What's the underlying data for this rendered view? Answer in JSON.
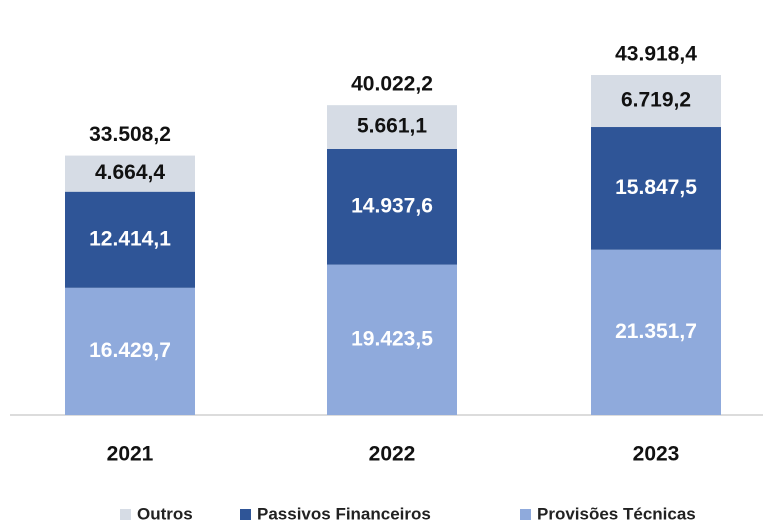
{
  "chart_data": {
    "type": "stacked_bar",
    "categories": [
      "2021",
      "2022",
      "2023"
    ],
    "series": [
      {
        "name": "Outros",
        "color": "#d6dce5",
        "label_color": "#111111",
        "values": [
          4664.4,
          5661.1,
          6719.2
        ],
        "value_labels": [
          "4.664,4",
          "5.661,1",
          "6.719,2"
        ]
      },
      {
        "name": "Passivos Financeiros",
        "color": "#2f5597",
        "label_color": "#ffffff",
        "values": [
          12414.1,
          14937.6,
          15847.5
        ],
        "value_labels": [
          "12.414,1",
          "14.937,6",
          "15.847,5"
        ]
      },
      {
        "name": "Provisões Técnicas",
        "color": "#8faadc",
        "label_color": "#ffffff",
        "values": [
          16429.7,
          19423.5,
          21351.7
        ],
        "value_labels": [
          "16.429,7",
          "19.423,5",
          "21.351,7"
        ]
      }
    ],
    "totals": [
      33508.2,
      40022.2,
      43918.4
    ],
    "total_labels": [
      "33.508,2",
      "40.022,2",
      "43.918,4"
    ]
  }
}
